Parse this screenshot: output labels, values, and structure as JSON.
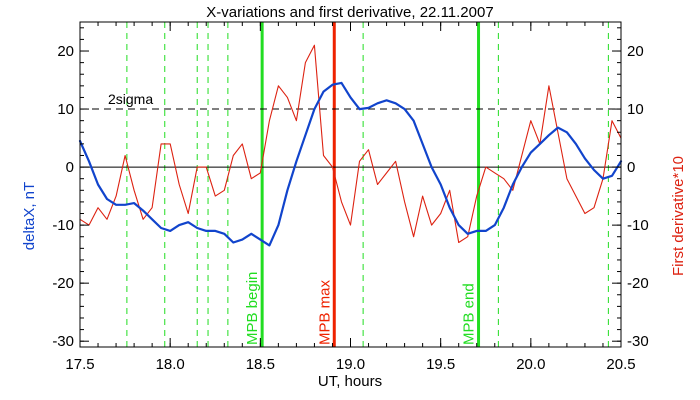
{
  "chart_data": {
    "type": "line",
    "title": "X-variations and first derivative, 22.11.2007",
    "xlabel": "UT, hours",
    "ylabel_left": "deltaX, nT",
    "ylabel_right": "First derivative*10",
    "xlim": [
      17.5,
      20.5
    ],
    "ylim": [
      -31,
      25
    ],
    "x_ticks": [
      17.5,
      18.0,
      18.5,
      19.0,
      19.5,
      20.0,
      20.5
    ],
    "x_tick_labels": [
      "17.5",
      "18.0",
      "18.5",
      "19.0",
      "19.5",
      "20.0",
      "20.5"
    ],
    "y_ticks": [
      -30,
      -20,
      -10,
      0,
      10,
      20
    ],
    "y_tick_labels_left": [
      "-30",
      "-20",
      "-10",
      "0",
      "10",
      "20"
    ],
    "y_tick_labels_right": [
      "-30",
      "-20",
      "-10",
      "0",
      "10",
      "20"
    ],
    "grid": false,
    "threshold": {
      "value": 10,
      "label": "2sigma"
    },
    "zero_line": 0,
    "dashed_markers": [
      17.76,
      17.97,
      18.15,
      18.21,
      18.32,
      19.07,
      19.82,
      20.43
    ],
    "vertical_markers": [
      {
        "x": 18.51,
        "label": "MPB begin",
        "color": "#22dd22"
      },
      {
        "x": 18.91,
        "label": "MPB max",
        "color": "#ee2200"
      },
      {
        "x": 19.71,
        "label": "MPB end",
        "color": "#22dd22"
      }
    ],
    "series": [
      {
        "color": "#1144cc",
        "axis": "left",
        "x": [
          17.5,
          17.55,
          17.6,
          17.65,
          17.7,
          17.75,
          17.8,
          17.85,
          17.9,
          17.95,
          18.0,
          18.05,
          18.1,
          18.15,
          18.2,
          18.25,
          18.3,
          18.35,
          18.4,
          18.45,
          18.5,
          18.55,
          18.6,
          18.65,
          18.7,
          18.75,
          18.8,
          18.85,
          18.9,
          18.95,
          19.0,
          19.05,
          19.1,
          19.15,
          19.2,
          19.25,
          19.3,
          19.35,
          19.4,
          19.45,
          19.5,
          19.55,
          19.6,
          19.65,
          19.7,
          19.75,
          19.8,
          19.85,
          19.9,
          19.95,
          20.0,
          20.05,
          20.1,
          20.15,
          20.2,
          20.25,
          20.3,
          20.35,
          20.4,
          20.45,
          20.5
        ],
        "values": [
          4.5,
          1,
          -3,
          -5.5,
          -6.5,
          -6.5,
          -6.2,
          -7.5,
          -9,
          -10.5,
          -11,
          -10,
          -9.5,
          -10.5,
          -11,
          -11,
          -11.5,
          -13,
          -12.5,
          -11.5,
          -12.5,
          -13.5,
          -10,
          -4,
          1,
          5.5,
          10,
          13,
          14.2,
          14.5,
          12,
          10,
          10.2,
          11,
          11.5,
          11,
          10,
          8,
          4,
          0,
          -3,
          -7,
          -10,
          -11.5,
          -11,
          -11,
          -10,
          -7,
          -3,
          0,
          2.5,
          4,
          5.5,
          6.8,
          6,
          4,
          1.5,
          -0.5,
          -2,
          -1.5,
          1
        ]
      },
      {
        "color": "#dd2211",
        "axis": "right",
        "x": [
          17.5,
          17.55,
          17.6,
          17.65,
          17.7,
          17.75,
          17.8,
          17.85,
          17.9,
          17.95,
          18.0,
          18.05,
          18.1,
          18.15,
          18.2,
          18.25,
          18.3,
          18.35,
          18.4,
          18.45,
          18.5,
          18.55,
          18.6,
          18.65,
          18.7,
          18.75,
          18.8,
          18.85,
          18.9,
          18.95,
          19.0,
          19.05,
          19.1,
          19.15,
          19.2,
          19.25,
          19.3,
          19.35,
          19.4,
          19.45,
          19.5,
          19.55,
          19.6,
          19.65,
          19.7,
          19.75,
          19.8,
          19.85,
          19.9,
          19.95,
          20.0,
          20.05,
          20.1,
          20.15,
          20.2,
          20.25,
          20.3,
          20.35,
          20.4,
          20.45,
          20.5
        ],
        "values": [
          -9,
          -10,
          -7,
          -9,
          -5,
          2,
          -4,
          -9,
          -7,
          4,
          4,
          -3,
          -8,
          0,
          0,
          -5,
          -4,
          2,
          4,
          -2,
          -1,
          8,
          14,
          12,
          8,
          18,
          21,
          2,
          0,
          -6,
          -10,
          1,
          3,
          -3,
          -1,
          1,
          -6,
          -12,
          -5,
          -10,
          -8,
          -4,
          -13,
          -12,
          -5,
          0,
          -1,
          -2,
          -4,
          2,
          8,
          4,
          14,
          6,
          -2,
          -5,
          -8,
          -7,
          -2,
          8,
          5
        ]
      }
    ]
  }
}
